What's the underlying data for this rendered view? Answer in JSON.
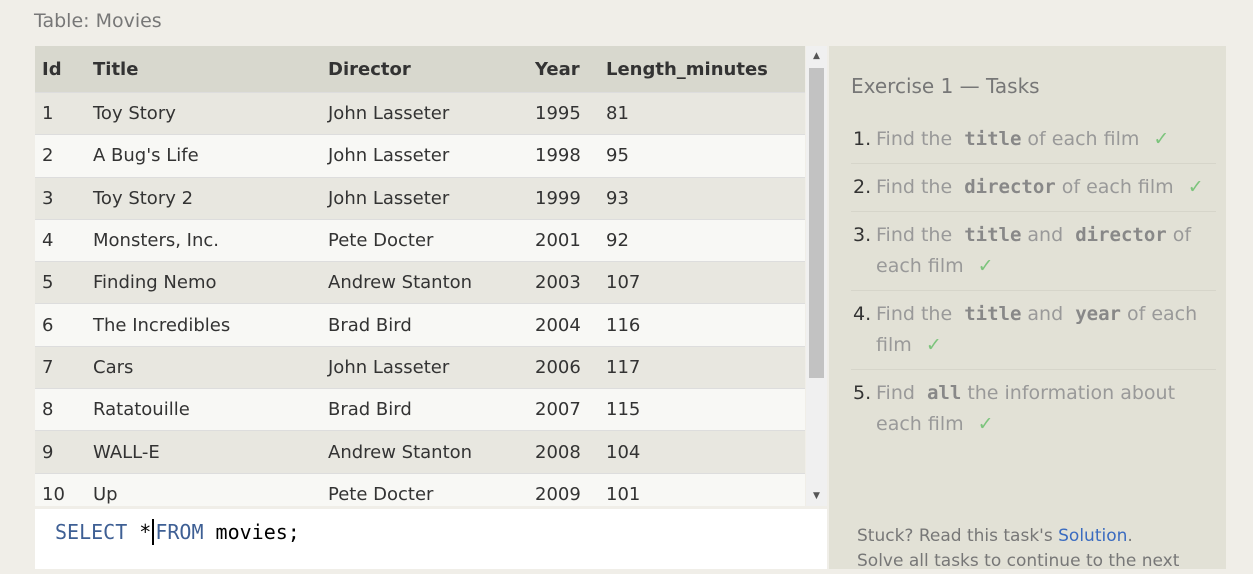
{
  "table_caption": "Table: Movies",
  "columns": [
    "Id",
    "Title",
    "Director",
    "Year",
    "Length_minutes"
  ],
  "rows": [
    [
      "1",
      "Toy Story",
      "John Lasseter",
      "1995",
      "81"
    ],
    [
      "2",
      "A Bug's Life",
      "John Lasseter",
      "1998",
      "95"
    ],
    [
      "3",
      "Toy Story 2",
      "John Lasseter",
      "1999",
      "93"
    ],
    [
      "4",
      "Monsters, Inc.",
      "Pete Docter",
      "2001",
      "92"
    ],
    [
      "5",
      "Finding Nemo",
      "Andrew Stanton",
      "2003",
      "107"
    ],
    [
      "6",
      "The Incredibles",
      "Brad Bird",
      "2004",
      "116"
    ],
    [
      "7",
      "Cars",
      "John Lasseter",
      "2006",
      "117"
    ],
    [
      "8",
      "Ratatouille",
      "Brad Bird",
      "2007",
      "115"
    ],
    [
      "9",
      "WALL-E",
      "Andrew Stanton",
      "2008",
      "104"
    ],
    [
      "10",
      "Up",
      "Pete Docter",
      "2009",
      "101"
    ]
  ],
  "editor": {
    "kw_select": "SELECT",
    "star": " *",
    "kw_from": "FROM",
    "rest": " movies;"
  },
  "tasks_panel": {
    "title": "Exercise 1 — Tasks",
    "tasks": [
      {
        "num": "1.",
        "pre": "Find the",
        "code1": "title",
        "mid": "of each film",
        "code2": "",
        "post": "",
        "check": "✓"
      },
      {
        "num": "2.",
        "pre": "Find the",
        "code1": "director",
        "mid": "of each film",
        "code2": "",
        "post": "",
        "check": "✓"
      },
      {
        "num": "3.",
        "pre": "Find the",
        "code1": "title",
        "mid": "and",
        "code2": "director",
        "post": "of each film",
        "check": "✓"
      },
      {
        "num": "4.",
        "pre": "Find the",
        "code1": "title",
        "mid": "and",
        "code2": "year",
        "post": "of each film",
        "check": "✓"
      },
      {
        "num": "5.",
        "pre": "Find",
        "code1": "all",
        "mid": "the information about each film",
        "code2": "",
        "post": "",
        "check": "✓"
      }
    ],
    "stuck_text": "Stuck? Read this task's",
    "solution_link": "Solution",
    "stuck_period": ".",
    "continue_text": "Solve all tasks to continue to the next"
  },
  "colors": {
    "keyword": "#3e5f94",
    "check": "#7cc47c",
    "link": "#3a6bc0",
    "header_bg": "#d8d8ce",
    "panel_bg": "#e2e1d6"
  }
}
